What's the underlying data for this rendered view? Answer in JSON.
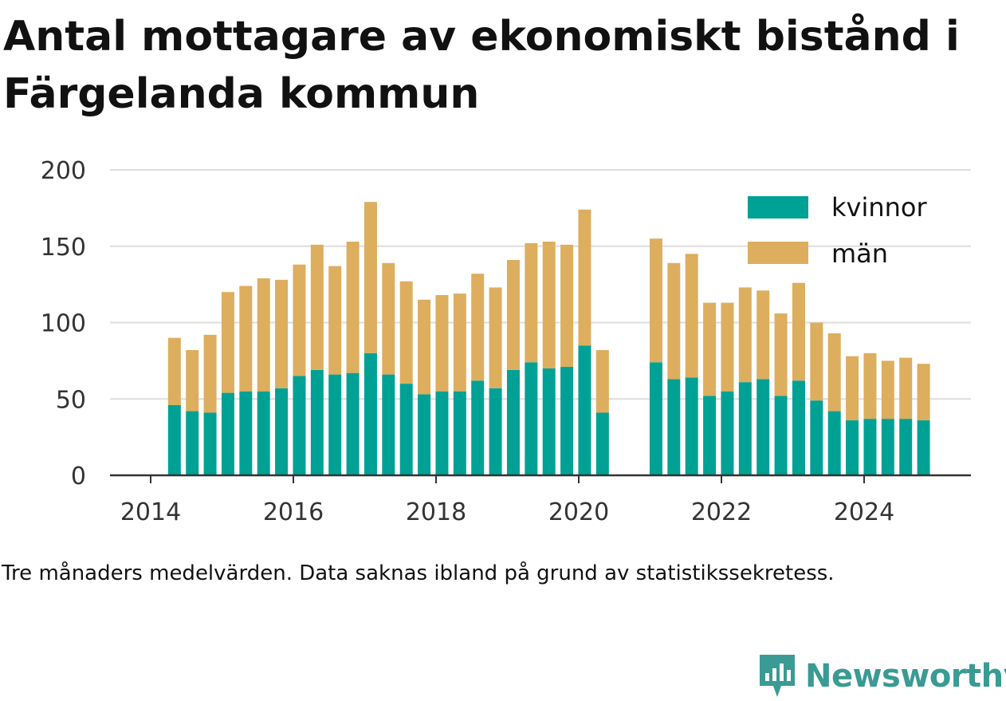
{
  "title": "Antal mottagare av ekonomiskt bistånd i Färgelanda kommun",
  "note": "Tre månaders medelvärden. Data saknas ibland på grund av statistikssekretess.",
  "brand": {
    "name": "Newsworthy",
    "icon": "newsworthy-logo-icon",
    "color": "#3a9a94"
  },
  "chart_data": {
    "type": "bar",
    "stacked": true,
    "title": "Antal mottagare av ekonomiskt bistånd i Färgelanda kommun",
    "xlabel": "",
    "ylabel": "",
    "ylim": [
      0,
      200
    ],
    "yticks": [
      0,
      50,
      100,
      150,
      200
    ],
    "xticks": [
      "2014",
      "2016",
      "2018",
      "2020",
      "2022",
      "2024"
    ],
    "grid": true,
    "legend_position": "top-right",
    "colors": {
      "kvinnor": "#00a195",
      "män": "#dcae5e"
    },
    "categories": [
      "2014-05",
      "2014-08",
      "2014-11",
      "2015-02",
      "2015-05",
      "2015-08",
      "2015-11",
      "2016-02",
      "2016-05",
      "2016-08",
      "2016-11",
      "2017-02",
      "2017-05",
      "2017-08",
      "2017-11",
      "2018-02",
      "2018-05",
      "2018-08",
      "2018-11",
      "2019-02",
      "2019-05",
      "2019-08",
      "2019-11",
      "2020-02",
      "2020-05",
      "2020-08",
      "2020-11",
      "2021-02",
      "2021-05",
      "2021-08",
      "2021-11",
      "2022-02",
      "2022-05",
      "2022-08",
      "2022-11",
      "2023-02",
      "2023-05",
      "2023-08",
      "2023-11",
      "2024-02",
      "2024-05",
      "2024-08",
      "2024-11"
    ],
    "series": [
      {
        "name": "kvinnor",
        "values": [
          46,
          42,
          41,
          54,
          55,
          55,
          57,
          65,
          69,
          66,
          67,
          80,
          66,
          60,
          53,
          55,
          55,
          62,
          57,
          69,
          74,
          70,
          71,
          85,
          41,
          null,
          null,
          74,
          63,
          64,
          52,
          55,
          61,
          63,
          52,
          62,
          49,
          42,
          36,
          37,
          37,
          37,
          36
        ]
      },
      {
        "name": "män",
        "values": [
          44,
          40,
          51,
          66,
          69,
          74,
          71,
          73,
          82,
          71,
          86,
          99,
          73,
          67,
          62,
          63,
          64,
          70,
          66,
          72,
          78,
          83,
          80,
          89,
          41,
          null,
          null,
          81,
          76,
          81,
          61,
          58,
          62,
          58,
          54,
          64,
          51,
          51,
          42,
          43,
          38,
          40,
          37
        ]
      }
    ]
  }
}
